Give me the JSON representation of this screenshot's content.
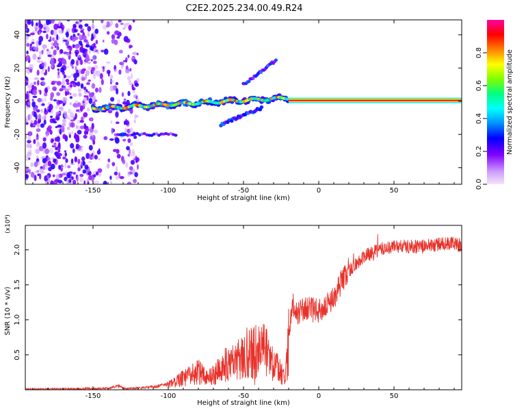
{
  "page_title": "C2E2.2025.234.00.49.R24",
  "colors": {
    "snr_line": "#e8322b",
    "frame": "#000000",
    "background": "#ffffff"
  },
  "chart_data": [
    {
      "type": "heatmap",
      "title": "C2E2.2025.234.00.49.R24",
      "xlabel": "Height of straight line (km)",
      "ylabel": "Frequency (Hz)",
      "xlim": [
        -195,
        95
      ],
      "ylim": [
        -50,
        49
      ],
      "xticks": [
        -150,
        -100,
        -50,
        0,
        50
      ],
      "xtick_labels": [
        "-150",
        "-100",
        "-50",
        "0",
        "50"
      ],
      "yticks": [
        -40,
        -20,
        0,
        20,
        40
      ],
      "ytick_labels": [
        "-40",
        "-20",
        "0",
        "20",
        "40"
      ],
      "colorbar": {
        "label": "Normalized spectral amplitude",
        "range": [
          0.0,
          1.0
        ],
        "ticks": [
          0.0,
          0.2,
          0.4,
          0.6,
          0.8
        ],
        "tick_labels": [
          "0.0",
          "0.2",
          "0.4",
          "0.6",
          "0.8"
        ],
        "colormap": [
          "#f2d8f5",
          "#cc99ff",
          "#8000ff",
          "#0000ff",
          "#00a0ff",
          "#00ffff",
          "#00ff80",
          "#80ff00",
          "#ffff00",
          "#ff8000",
          "#ff0000",
          "#ff00a0"
        ]
      },
      "features": [
        {
          "name": "carrier",
          "x_from": -20,
          "x_to": 95,
          "frequency": 0.5,
          "amplitude": 0.95
        },
        {
          "name": "main-track",
          "x_from": -150,
          "x_to": -20,
          "frequency_start": -4.5,
          "frequency_end": 2,
          "amplitude": 0.55
        },
        {
          "name": "upper-branch",
          "x_from": -50,
          "x_to": -28,
          "frequency_start": 10,
          "frequency_end": 25,
          "amplitude": 0.2
        },
        {
          "name": "lower-branch",
          "x_from": -65,
          "x_to": -38,
          "frequency_start": -14,
          "frequency_end": -4,
          "amplitude": 0.2
        },
        {
          "name": "lower-line",
          "x_from": -135,
          "x_to": -95,
          "frequency": -20,
          "amplitude": 0.2
        },
        {
          "name": "noise-region",
          "x_from": -195,
          "x_to": -120,
          "amplitude": 0.2
        }
      ]
    },
    {
      "type": "line",
      "xlabel": "Height of straight line (km)",
      "ylabel": "SNR (10 * v/v)",
      "scale_label": "(x10⁴)",
      "xlim": [
        -195,
        95
      ],
      "ylim": [
        0,
        2.35
      ],
      "xticks": [
        -150,
        -100,
        -50,
        0,
        50
      ],
      "xtick_labels": [
        "-150",
        "-100",
        "-50",
        "0",
        "50"
      ],
      "yticks": [
        0.5,
        1.0,
        1.5,
        2.0
      ],
      "ytick_labels": [
        "0.5",
        "1.0",
        "1.5",
        "2.0"
      ],
      "series": [
        {
          "name": "SNR",
          "x": [
            -195,
            -160,
            -140,
            -132,
            -130,
            -125,
            -110,
            -100,
            -95,
            -90,
            -85,
            -80,
            -75,
            -70,
            -65,
            -60,
            -55,
            -50,
            -45,
            -40,
            -35,
            -30,
            -25,
            -22,
            -20,
            -17,
            -15,
            -10,
            -5,
            0,
            5,
            10,
            15,
            20,
            25,
            30,
            40,
            50,
            60,
            70,
            80,
            90,
            95
          ],
          "y": [
            0.01,
            0.015,
            0.02,
            0.06,
            0.02,
            0.02,
            0.04,
            0.08,
            0.12,
            0.18,
            0.22,
            0.28,
            0.18,
            0.22,
            0.35,
            0.4,
            0.45,
            0.55,
            0.6,
            0.6,
            0.62,
            0.4,
            0.25,
            0.2,
            0.8,
            1.2,
            1.1,
            1.15,
            1.15,
            1.12,
            1.2,
            1.3,
            1.55,
            1.7,
            1.8,
            1.9,
            2.0,
            2.05,
            2.05,
            2.05,
            2.08,
            2.1,
            2.05
          ]
        }
      ]
    }
  ]
}
